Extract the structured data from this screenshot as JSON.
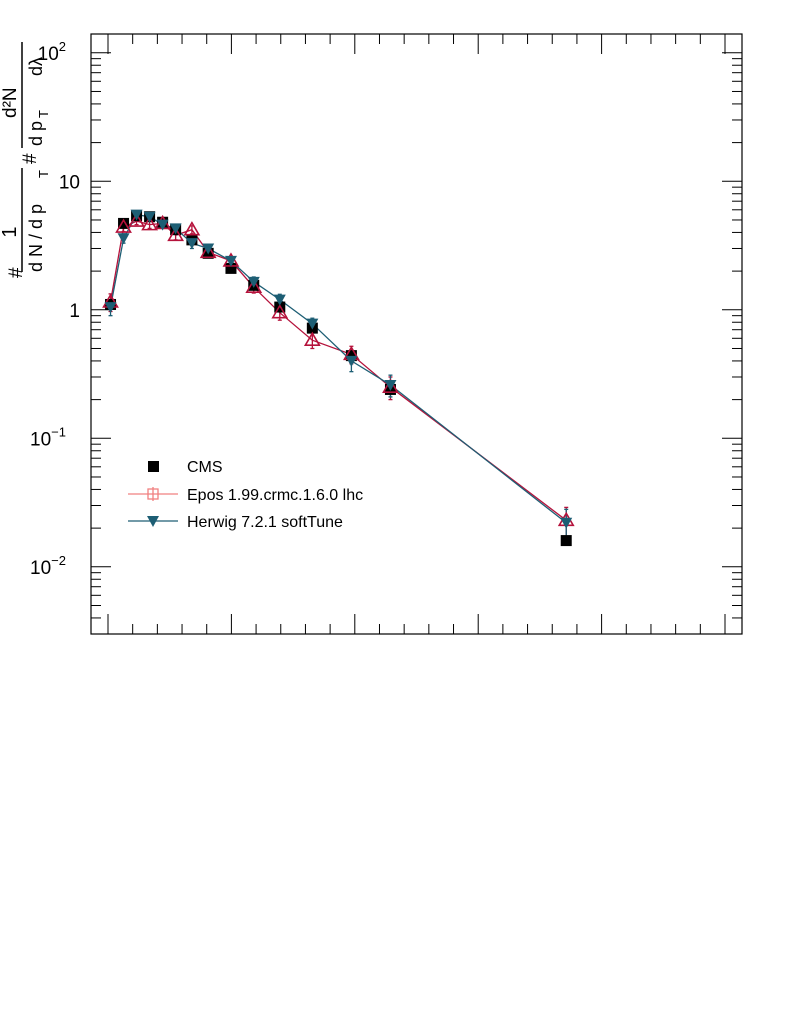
{
  "chart_data": {
    "type": "scatter",
    "title": "",
    "xlabel": "",
    "ylabel": {
      "prefix": "#",
      "frac1_num": "1",
      "frac1_den": "d N / d p",
      "frac1_den_sub": "T",
      "frac2_num_hash": "#",
      "frac2_num": "d²N",
      "frac2_den": "d p",
      "frac2_den_sub": "T",
      "frac2_den_tail": "dλ"
    },
    "y_scale": "log",
    "ylim": [
      0.003,
      140
    ],
    "xlim": [
      0,
      1
    ],
    "y_ticks": [
      {
        "value": 0.01,
        "base": "10",
        "exp": "−2"
      },
      {
        "value": 0.1,
        "base": "10",
        "exp": "−1"
      },
      {
        "value": 1,
        "base": "1",
        "exp": ""
      },
      {
        "value": 10,
        "base": "10",
        "exp": ""
      },
      {
        "value": 100,
        "base": "10",
        "exp": "2"
      }
    ],
    "legend": {
      "position": "bottom-left"
    },
    "series": [
      {
        "name": "CMS",
        "marker": "square-filled",
        "color": "#000000",
        "line": false,
        "x": [
          0.03,
          0.05,
          0.07,
          0.09,
          0.11,
          0.13,
          0.155,
          0.18,
          0.215,
          0.25,
          0.29,
          0.34,
          0.4,
          0.46,
          0.73
        ],
        "y": [
          1.1,
          4.7,
          5.4,
          5.3,
          4.8,
          4.2,
          3.5,
          2.75,
          2.1,
          1.55,
          1.05,
          0.72,
          0.44,
          0.24,
          0.016
        ]
      },
      {
        "name": "Epos 1.99.crmc.1.6.0 lhc",
        "marker": "triangle-open",
        "color": "#b5123b",
        "line": true,
        "x": [
          0.03,
          0.05,
          0.07,
          0.09,
          0.11,
          0.13,
          0.155,
          0.18,
          0.215,
          0.25,
          0.29,
          0.34,
          0.4,
          0.46,
          0.73
        ],
        "y": [
          1.15,
          4.4,
          4.9,
          4.6,
          4.7,
          3.8,
          4.2,
          2.8,
          2.4,
          1.5,
          0.95,
          0.58,
          0.45,
          0.25,
          0.023
        ],
        "yerr": [
          0.18,
          0.35,
          0.3,
          0.3,
          0.3,
          0.3,
          0.3,
          0.2,
          0.2,
          0.15,
          0.12,
          0.08,
          0.07,
          0.05,
          0.006
        ]
      },
      {
        "name": "Herwig 7.2.1 softTune",
        "marker": "triangle-down-filled",
        "color": "#1d5e74",
        "line": true,
        "x": [
          0.03,
          0.05,
          0.07,
          0.09,
          0.11,
          0.13,
          0.155,
          0.18,
          0.215,
          0.25,
          0.29,
          0.34,
          0.4,
          0.46,
          0.73
        ],
        "y": [
          1.05,
          3.6,
          5.5,
          5.3,
          4.6,
          4.3,
          3.3,
          3.0,
          2.4,
          1.65,
          1.2,
          0.78,
          0.4,
          0.26,
          0.022
        ],
        "yerr": [
          0.15,
          0.3,
          0.3,
          0.3,
          0.3,
          0.3,
          0.3,
          0.2,
          0.2,
          0.15,
          0.12,
          0.08,
          0.07,
          0.05,
          0.006
        ]
      }
    ]
  }
}
